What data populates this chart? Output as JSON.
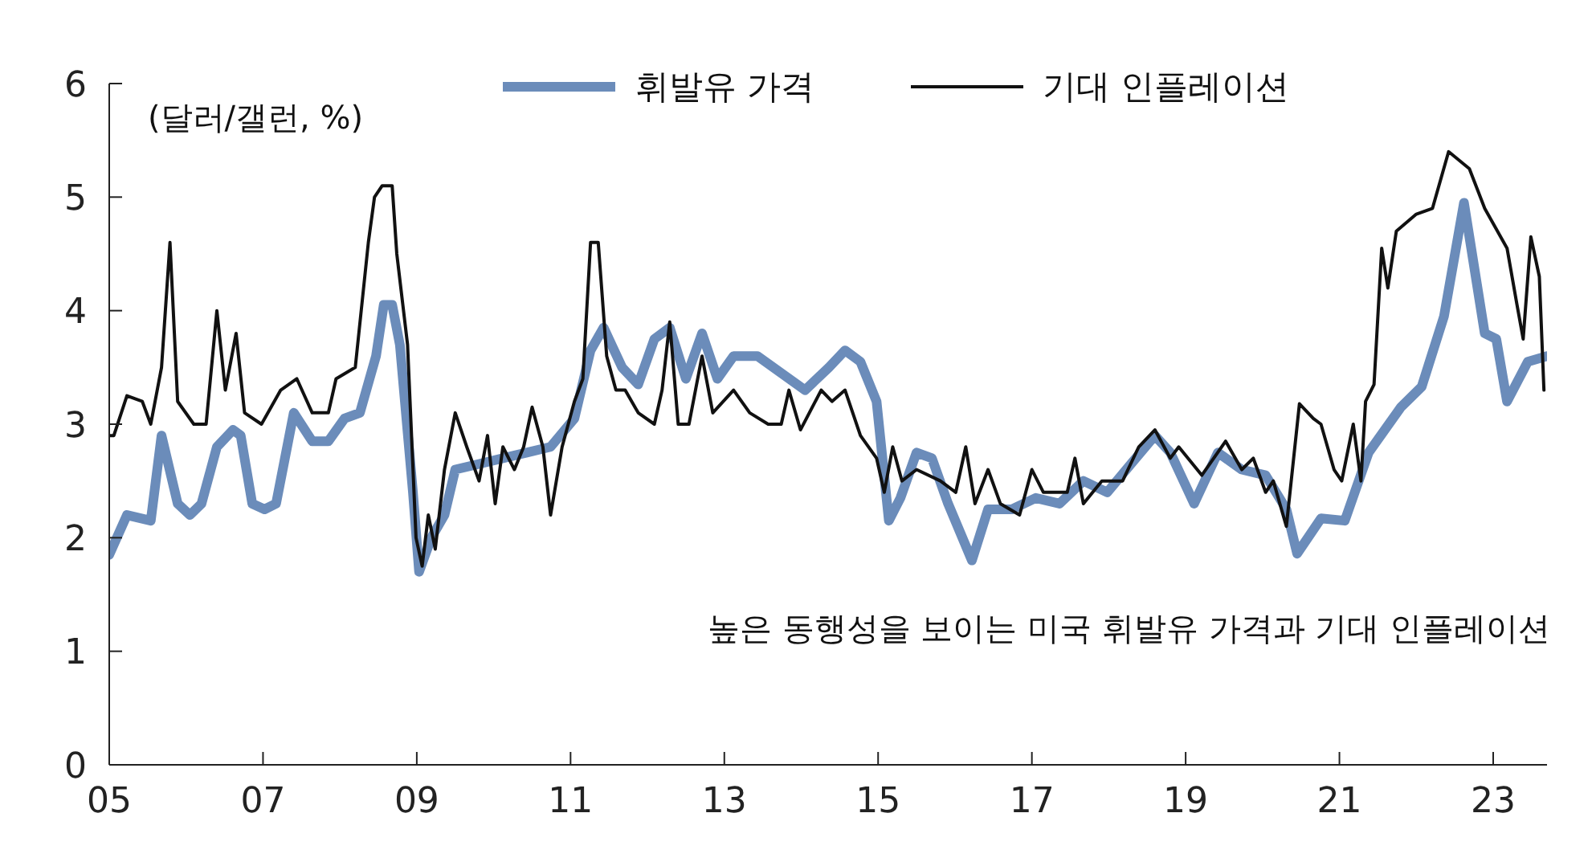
{
  "chart_data": {
    "type": "line",
    "ylabel": "(달러/갤런, %)",
    "annotations": [
      "높은 동행성을 보이는 미국 휘발유 가격과 기대 인플레이션"
    ],
    "xlim": [
      2005,
      2023.7
    ],
    "xticks": [
      {
        "value": 2005,
        "label": "05"
      },
      {
        "value": 2007,
        "label": "07"
      },
      {
        "value": 2009,
        "label": "09"
      },
      {
        "value": 2011,
        "label": "11"
      },
      {
        "value": 2013,
        "label": "13"
      },
      {
        "value": 2015,
        "label": "15"
      },
      {
        "value": 2017,
        "label": "17"
      },
      {
        "value": 2019,
        "label": "19"
      },
      {
        "value": 2021,
        "label": "21"
      },
      {
        "value": 2023,
        "label": "23"
      }
    ],
    "ylim": [
      0,
      6
    ],
    "yticks": [
      0,
      1,
      2,
      3,
      4,
      5,
      6
    ],
    "legend": "top",
    "marker": "none",
    "line_style": "solid",
    "series": [
      {
        "name": "휘발유 가격",
        "color": "#6b8cba",
        "x": [
          2005,
          2005.23,
          2005.54,
          2005.68,
          2005.89,
          2006.05,
          2006.2,
          2006.4,
          2006.61,
          2006.71,
          2006.86,
          2007.02,
          2007.17,
          2007.4,
          2007.64,
          2007.85,
          2008.06,
          2008.26,
          2008.47,
          2008.57,
          2008.68,
          2008.78,
          2008.95,
          2009.03,
          2009.19,
          2009.36,
          2009.5,
          2009.81,
          2010.12,
          2010.43,
          2010.74,
          2011.05,
          2011.26,
          2011.43,
          2011.67,
          2011.88,
          2012.09,
          2012.29,
          2012.5,
          2012.71,
          2012.91,
          2013.12,
          2013.43,
          2013.74,
          2014.05,
          2014.36,
          2014.57,
          2014.77,
          2014.98,
          2015.14,
          2015.29,
          2015.5,
          2015.7,
          2015.91,
          2016.22,
          2016.43,
          2016.74,
          2017.05,
          2017.36,
          2017.67,
          2017.98,
          2018.29,
          2018.6,
          2018.8,
          2019.11,
          2019.42,
          2019.73,
          2020.04,
          2020.31,
          2020.45,
          2020.76,
          2021.07,
          2021.38,
          2021.8,
          2022.07,
          2022.36,
          2022.62,
          2022.89,
          2023.04,
          2023.18,
          2023.45,
          2023.7
        ],
        "values": [
          1.85,
          2.2,
          2.15,
          2.9,
          2.3,
          2.2,
          2.3,
          2.8,
          2.95,
          2.9,
          2.3,
          2.25,
          2.3,
          3.1,
          2.85,
          2.85,
          3.05,
          3.1,
          3.6,
          4.05,
          4.05,
          3.7,
          2.4,
          1.7,
          2.0,
          2.2,
          2.6,
          2.65,
          2.7,
          2.75,
          2.8,
          3.05,
          3.65,
          3.85,
          3.5,
          3.35,
          3.75,
          3.85,
          3.4,
          3.8,
          3.4,
          3.6,
          3.6,
          3.45,
          3.3,
          3.5,
          3.65,
          3.55,
          3.2,
          2.15,
          2.35,
          2.75,
          2.7,
          2.3,
          1.8,
          2.25,
          2.25,
          2.35,
          2.3,
          2.5,
          2.4,
          2.65,
          2.9,
          2.75,
          2.3,
          2.75,
          2.6,
          2.55,
          2.25,
          1.86,
          2.17,
          2.15,
          2.75,
          3.15,
          3.33,
          3.95,
          4.95,
          3.8,
          3.75,
          3.2,
          3.55,
          3.6
        ]
      },
      {
        "name": "기대 인플레이션",
        "color": "#111111",
        "x": [
          2005,
          2005.06,
          2005.23,
          2005.43,
          2005.54,
          2005.68,
          2005.79,
          2005.89,
          2006.1,
          2006.26,
          2006.4,
          2006.51,
          2006.65,
          2006.76,
          2006.98,
          2007.23,
          2007.44,
          2007.64,
          2007.85,
          2007.95,
          2008.2,
          2008.37,
          2008.45,
          2008.55,
          2008.68,
          2008.74,
          2008.88,
          2008.99,
          2009.07,
          2009.15,
          2009.24,
          2009.36,
          2009.5,
          2009.65,
          2009.81,
          2009.92,
          2010.02,
          2010.12,
          2010.27,
          2010.39,
          2010.5,
          2010.64,
          2010.74,
          2010.89,
          2011.05,
          2011.16,
          2011.26,
          2011.36,
          2011.47,
          2011.59,
          2011.71,
          2011.88,
          2012.09,
          2012.19,
          2012.29,
          2012.4,
          2012.54,
          2012.71,
          2012.85,
          2013.12,
          2013.33,
          2013.57,
          2013.74,
          2013.84,
          2013.99,
          2014.26,
          2014.4,
          2014.57,
          2014.77,
          2014.98,
          2015.08,
          2015.19,
          2015.31,
          2015.5,
          2015.81,
          2016.01,
          2016.14,
          2016.26,
          2016.43,
          2016.59,
          2016.84,
          2017,
          2017.15,
          2017.46,
          2017.56,
          2017.67,
          2017.91,
          2018.18,
          2018.39,
          2018.6,
          2018.8,
          2018.91,
          2019.21,
          2019.52,
          2019.73,
          2019.88,
          2020.04,
          2020.14,
          2020.31,
          2020.48,
          2020.66,
          2020.76,
          2020.93,
          2021.03,
          2021.18,
          2021.28,
          2021.34,
          2021.45,
          2021.55,
          2021.63,
          2021.74,
          2022,
          2022.21,
          2022.42,
          2022.69,
          2022.89,
          2023.18,
          2023.31,
          2023.39,
          2023.49,
          2023.6,
          2023.66
        ],
        "values": [
          2.9,
          2.9,
          3.25,
          3.2,
          3.0,
          3.5,
          4.6,
          3.2,
          3.0,
          3.0,
          4.0,
          3.3,
          3.8,
          3.1,
          3.0,
          3.3,
          3.4,
          3.1,
          3.1,
          3.4,
          3.5,
          4.6,
          5.0,
          5.1,
          5.1,
          4.5,
          3.7,
          2.0,
          1.75,
          2.2,
          1.9,
          2.6,
          3.1,
          2.8,
          2.5,
          2.9,
          2.3,
          2.8,
          2.6,
          2.8,
          3.15,
          2.8,
          2.2,
          2.8,
          3.2,
          3.4,
          4.6,
          4.6,
          3.6,
          3.3,
          3.3,
          3.1,
          3.0,
          3.3,
          3.9,
          3.0,
          3.0,
          3.6,
          3.1,
          3.3,
          3.1,
          3.0,
          3.0,
          3.3,
          2.95,
          3.3,
          3.2,
          3.3,
          2.9,
          2.7,
          2.4,
          2.8,
          2.5,
          2.6,
          2.5,
          2.4,
          2.8,
          2.3,
          2.6,
          2.3,
          2.2,
          2.6,
          2.4,
          2.4,
          2.7,
          2.3,
          2.5,
          2.5,
          2.8,
          2.95,
          2.7,
          2.8,
          2.55,
          2.85,
          2.6,
          2.7,
          2.4,
          2.5,
          2.1,
          3.18,
          3.05,
          3.0,
          2.6,
          2.5,
          3.0,
          2.5,
          3.2,
          3.35,
          4.55,
          4.2,
          4.7,
          4.85,
          4.9,
          5.4,
          5.25,
          4.9,
          4.55,
          4.05,
          3.75,
          4.65,
          4.3,
          3.3
        ]
      }
    ]
  }
}
